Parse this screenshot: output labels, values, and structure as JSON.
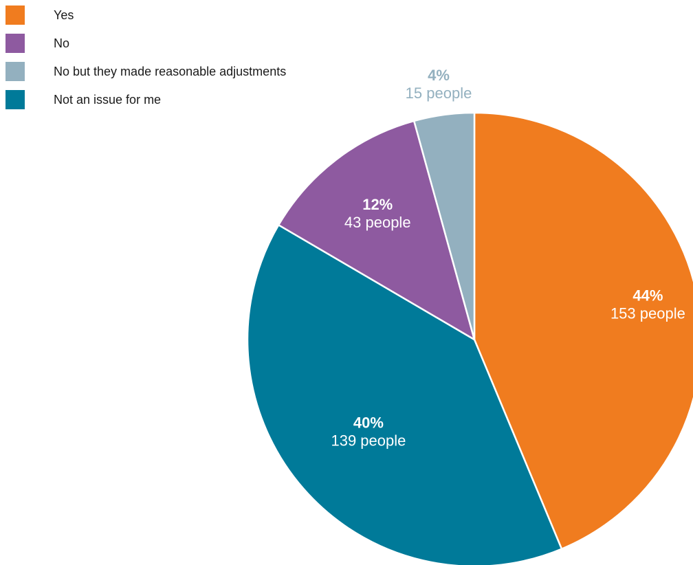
{
  "chart_data": {
    "type": "pie",
    "title": "",
    "slices": [
      {
        "label": "Yes",
        "value": 153,
        "percent_label": "44%",
        "count_label": "153 people",
        "color": "#f07c1f",
        "label_color": "#ffffff"
      },
      {
        "label": "Not an issue for me",
        "value": 139,
        "percent_label": "40%",
        "count_label": "139 people",
        "color": "#007a99",
        "label_color": "#ffffff"
      },
      {
        "label": "No",
        "value": 43,
        "percent_label": "12%",
        "count_label": "43 people",
        "color": "#8e5aa0",
        "label_color": "#ffffff"
      },
      {
        "label": "No but they made reasonable adjustments",
        "value": 15,
        "percent_label": "4%",
        "count_label": "15 people",
        "color": "#93b0bf",
        "label_color": "#93b0bf"
      }
    ],
    "legend": {
      "placement": "top-left",
      "order": [
        "Yes",
        "No",
        "No but they made reasonable adjustments",
        "Not an issue for me"
      ]
    }
  }
}
